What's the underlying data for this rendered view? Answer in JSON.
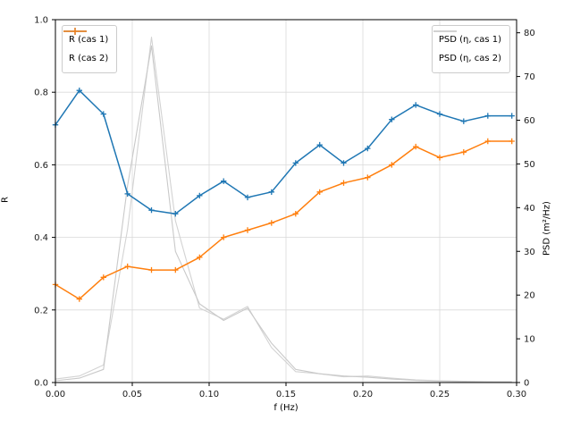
{
  "chart_data": {
    "type": "line",
    "title": "",
    "xlabel": "f (Hz)",
    "ylabel_left": "R",
    "ylabel_right": "PSD (m²/Hz)",
    "xlim": [
      0,
      0.3
    ],
    "ylim_left": [
      0,
      1.0
    ],
    "ylim_right": [
      0,
      83
    ],
    "grid": true,
    "legend_left_position": "upper left",
    "legend_right_position": "upper right",
    "x_tick_labels": [
      "0.00",
      "0.05",
      "0.10",
      "0.15",
      "0.20",
      "0.25",
      "0.30"
    ],
    "x_tick_values": [
      0,
      0.05,
      0.1,
      0.15,
      0.2,
      0.25,
      0.3
    ],
    "y_tick_labels_left": [
      "0.0",
      "0.2",
      "0.4",
      "0.6",
      "0.8",
      "1.0"
    ],
    "y_tick_values_left": [
      0,
      0.2,
      0.4,
      0.6,
      0.8,
      1.0
    ],
    "y_tick_labels_right": [
      "0",
      "10",
      "20",
      "30",
      "40",
      "50",
      "60",
      "70",
      "80"
    ],
    "y_tick_values_right": [
      0,
      10,
      20,
      30,
      40,
      50,
      60,
      70,
      80
    ],
    "x": [
      0.0,
      0.0156,
      0.0313,
      0.0469,
      0.0625,
      0.0781,
      0.0938,
      0.1094,
      0.125,
      0.1406,
      0.1563,
      0.1719,
      0.1875,
      0.2031,
      0.2188,
      0.2344,
      0.25,
      0.2656,
      0.2813,
      0.2969
    ],
    "series": [
      {
        "name": "R (cas 1)",
        "axis": "left",
        "color": "#1f77b4",
        "marker": "plus",
        "values": [
          0.71,
          0.805,
          0.74,
          0.52,
          0.475,
          0.465,
          0.515,
          0.555,
          0.51,
          0.525,
          0.605,
          0.655,
          0.605,
          0.645,
          0.725,
          0.765,
          0.74,
          0.72,
          0.735,
          0.735
        ]
      },
      {
        "name": "R (cas 2)",
        "axis": "left",
        "color": "#ff7f0e",
        "marker": "plus",
        "values": [
          0.27,
          0.23,
          0.29,
          0.32,
          0.31,
          0.31,
          0.345,
          0.4,
          0.42,
          0.44,
          0.465,
          0.525,
          0.55,
          0.565,
          0.6,
          0.65,
          0.62,
          0.635,
          0.665,
          0.665
        ]
      },
      {
        "name": "PSD (η, cas 1)",
        "axis": "right",
        "color": "#d3d3d3",
        "marker": "none",
        "values": [
          0.8,
          1.5,
          4,
          35,
          79,
          37,
          17,
          14.5,
          17.4,
          8,
          2.5,
          2.0,
          1.3,
          1.5,
          1.0,
          0.6,
          0.4,
          0.3,
          0.2,
          0.2
        ]
      },
      {
        "name": "PSD (η, cas 2)",
        "axis": "right",
        "color": "#c9c9c9",
        "marker": "none",
        "values": [
          0.4,
          1.0,
          3,
          45,
          77,
          30,
          18,
          14.2,
          17.0,
          9,
          3.0,
          2.0,
          1.5,
          1.2,
          0.8,
          0.5,
          0.3,
          0.2,
          0.2,
          0.1
        ]
      }
    ],
    "colors": {
      "grid": "#d9d9d9",
      "frame": "#000000",
      "tick_text": "#1a1a1a"
    }
  }
}
